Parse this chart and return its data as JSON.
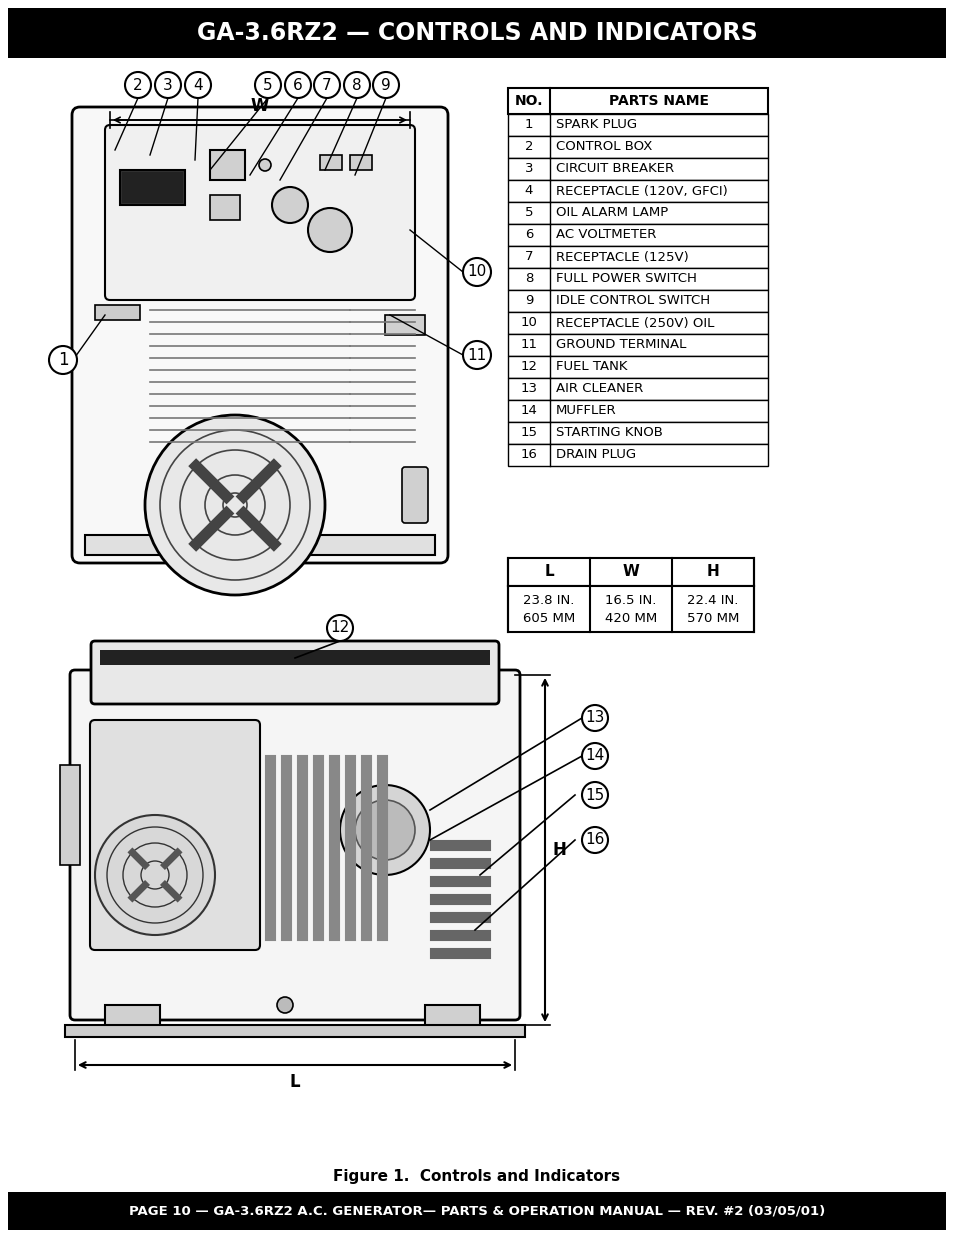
{
  "title": "GA-3.6RZ2 — CONTROLS AND INDICATORS",
  "footer": "PAGE 10 — GA-3.6RZ2 A.C. GENERATOR— PARTS & OPERATION MANUAL — REV. #2 (03/05/01)",
  "parts_table_rows": [
    [
      "1",
      "SPARK PLUG"
    ],
    [
      "2",
      "CONTROL BOX"
    ],
    [
      "3",
      "CIRCUIT BREAKER"
    ],
    [
      "4",
      "RECEPTACLE (120V, GFCI)"
    ],
    [
      "5",
      "OIL ALARM LAMP"
    ],
    [
      "6",
      "AC VOLTMETER"
    ],
    [
      "7",
      "RECEPTACLE (125V)"
    ],
    [
      "8",
      "FULL POWER SWITCH"
    ],
    [
      "9",
      "IDLE CONTROL SWITCH"
    ],
    [
      "10",
      "RECEPTACLE (250V) OIL"
    ],
    [
      "11",
      "GROUND TERMINAL"
    ],
    [
      "12",
      "FUEL TANK"
    ],
    [
      "13",
      "AIR CLEANER"
    ],
    [
      "14",
      "MUFFLER"
    ],
    [
      "15",
      "STARTING KNOB"
    ],
    [
      "16",
      "DRAIN PLUG"
    ]
  ],
  "dim_headers": [
    "L",
    "W",
    "H"
  ],
  "dim_values": [
    "23.8 IN.\n605 MM",
    "16.5 IN.\n420 MM",
    "22.4 IN.\n570 MM"
  ],
  "figure_caption": "Figure 1.  Controls and Indicators",
  "bg_color": "#ffffff",
  "header_bg": "#000000",
  "header_fg": "#ffffff"
}
